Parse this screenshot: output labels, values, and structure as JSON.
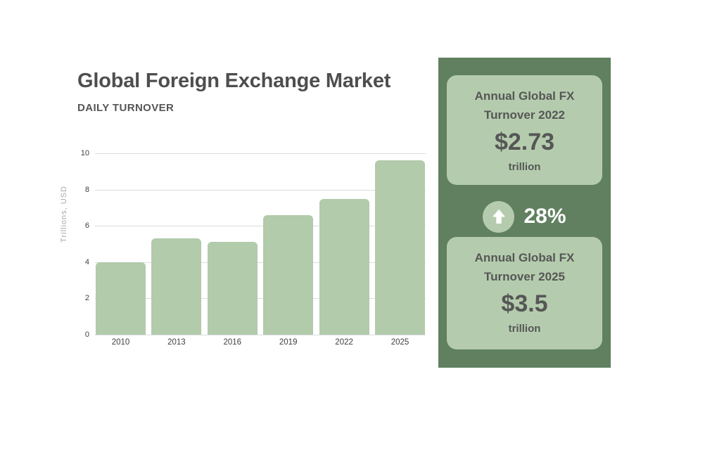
{
  "chart_data": {
    "type": "bar",
    "title": "Global Foreign Exchange Market",
    "subtitle": "DAILY TURNOVER",
    "categories": [
      "2010",
      "2013",
      "2016",
      "2019",
      "2022",
      "2025"
    ],
    "values": [
      4.0,
      5.3,
      5.1,
      6.6,
      7.5,
      9.6
    ],
    "xlabel": "",
    "ylabel": "Trillions, USD",
    "ylim": [
      0,
      10
    ],
    "yticks": [
      0,
      2,
      4,
      6,
      8,
      10
    ],
    "grid": true,
    "legend": "none",
    "bar_color": "#b2cbab",
    "gridline_color": "#dcdcdc"
  },
  "panel": {
    "background": "#60805f",
    "card_background": "#b4ccad",
    "cards": [
      {
        "title_line1": "Annual Global FX",
        "title_line2": "Turnover 2022",
        "value": "$2.73",
        "unit": "trillion"
      },
      {
        "title_line1": "Annual Global FX",
        "title_line2": "Turnover 2025",
        "value": "$3.5",
        "unit": "trillion"
      }
    ],
    "change": {
      "percent": "28%",
      "direction": "up",
      "icon": "up-arrow-icon",
      "icon_color": "#ffffff",
      "text_color": "#ffffff"
    }
  },
  "colors": {
    "page_background": "#ffffff",
    "title_text": "#4e4e4e",
    "body_text": "#565656",
    "axis_text": "#3f3f3f",
    "muted_axis_text": "#a8a8a8"
  }
}
